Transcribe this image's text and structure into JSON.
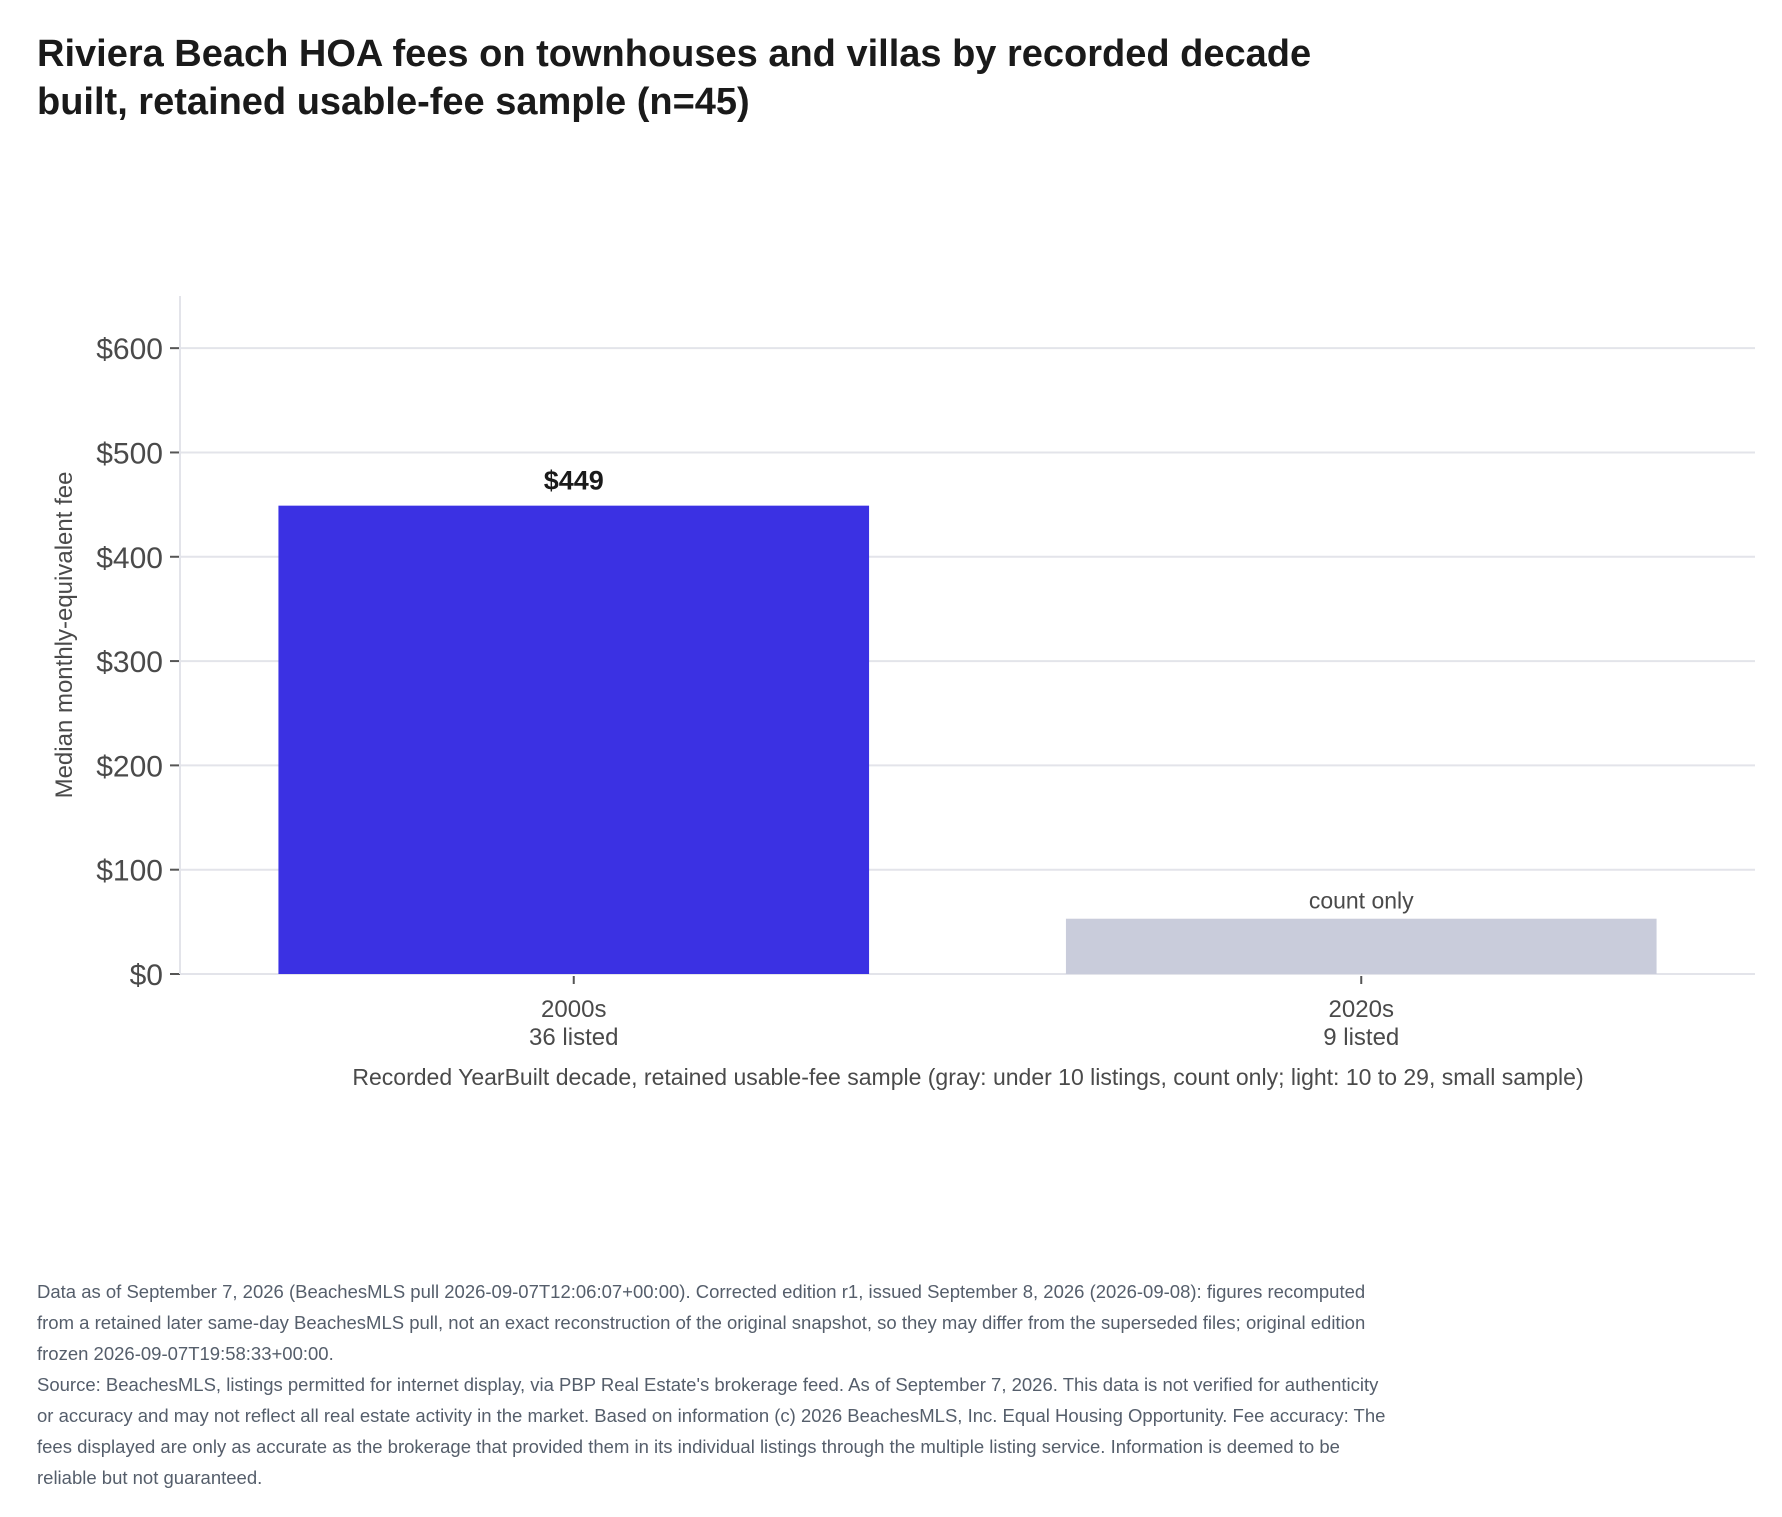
{
  "chart_data": {
    "type": "bar",
    "title": "Riviera Beach HOA fees on townhouses and villas by recorded decade built, retained usable-fee sample (n=45)",
    "ylabel": "Median monthly-equivalent fee",
    "xlabel": "Recorded YearBuilt decade, retained usable-fee sample (gray: under 10 listings, count only; light: 10 to 29, small sample)",
    "ylim": [
      0,
      650
    ],
    "yticks": [
      {
        "value": 0,
        "label": "$0"
      },
      {
        "value": 100,
        "label": "$100"
      },
      {
        "value": 200,
        "label": "$200"
      },
      {
        "value": 300,
        "label": "$300"
      },
      {
        "value": 400,
        "label": "$400"
      },
      {
        "value": 500,
        "label": "$500"
      },
      {
        "value": 600,
        "label": "$600"
      }
    ],
    "grid": true,
    "categories": [
      "2000s",
      "2020s"
    ],
    "bars": [
      {
        "category": "2000s",
        "count_label": "36 listed",
        "value": 449,
        "data_label": "$449",
        "color": "#3b31e3",
        "kind": "median"
      },
      {
        "category": "2020s",
        "count_label": "9 listed",
        "value": 53,
        "data_label": "count only",
        "color": "#c9ccdb",
        "kind": "count-only"
      }
    ]
  },
  "colors": {
    "primary_bar": "#3b31e3",
    "count_only_bar": "#c9ccdb",
    "grid": "#e3e4ea",
    "axis_text": "#4a4a4a",
    "footnote_text": "#555e6b"
  },
  "footnote": {
    "data_note": "Data as of September 7, 2026 (BeachesMLS pull 2026-09-07T12:06:07+00:00). Corrected edition r1, issued September 8, 2026 (2026-09-08): figures recomputed from a retained later same-day BeachesMLS pull, not an exact reconstruction of the original snapshot, so they may differ from the superseded files; original edition frozen 2026-09-07T19:58:33+00:00.",
    "source_note": "Source: BeachesMLS, listings permitted for internet display, via PBP Real Estate's brokerage feed. As of September 7, 2026. This data is not verified for authenticity or accuracy and may not reflect all real estate activity in the market. Based on information (c) 2026 BeachesMLS, Inc. Equal Housing Opportunity. Fee accuracy: The fees displayed are only as accurate as the brokerage that provided them in its individual listings through the multiple listing service. Information is deemed to be reliable but not guaranteed."
  }
}
